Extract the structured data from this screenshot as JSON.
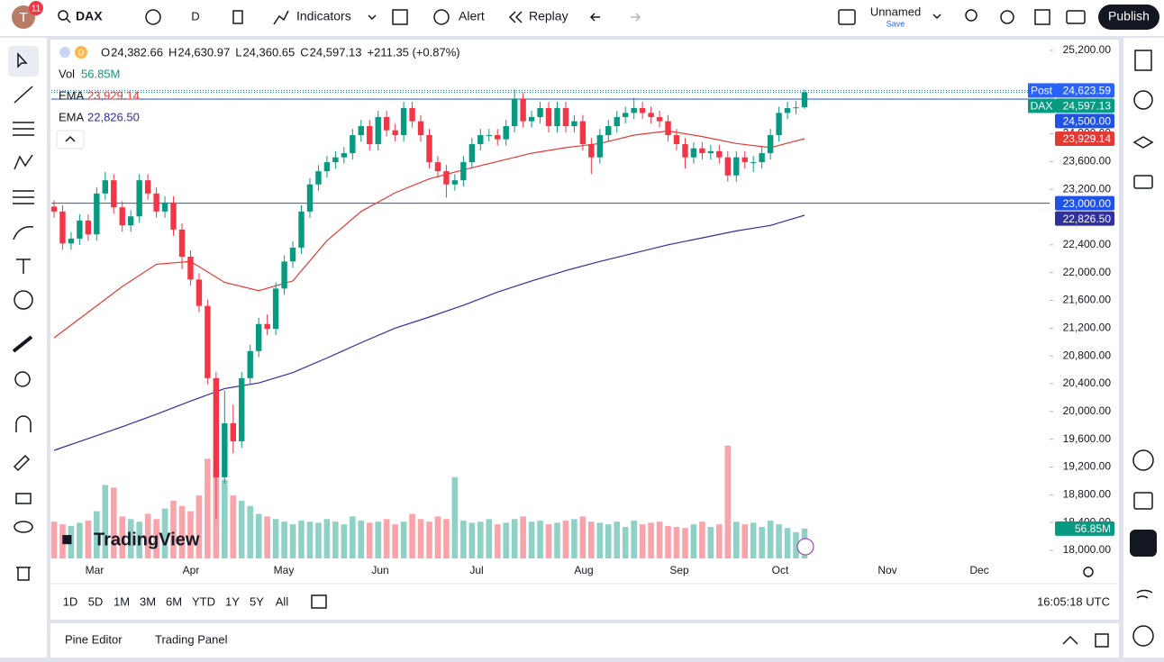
{
  "ui": {
    "avatar": "T",
    "badge": "11",
    "symbol": "DAX",
    "interval": "D",
    "indicators": "Indicators",
    "alert": "Alert",
    "replay": "Replay",
    "layout_name": "Unnamed",
    "save": "Save",
    "publish": "Publish",
    "ranges": [
      "1D",
      "5D",
      "1M",
      "3M",
      "6M",
      "YTD",
      "1Y",
      "5Y",
      "All"
    ],
    "clock": "16:05:18 UTC",
    "bottom_tabs": [
      "Pine Editor",
      "Trading Panel"
    ],
    "logo": "TradingView",
    "d_badge": "D"
  },
  "chart_data": {
    "type": "candlestick",
    "ohlc_legend": [
      {
        "key": "O",
        "label": "24,382.66"
      },
      {
        "key": "H",
        "label": "24,630.97"
      },
      {
        "key": "L",
        "label": "24,360.65"
      },
      {
        "key": "C",
        "label": "24,597.13"
      }
    ],
    "change": "+211.35 (+0.87%)",
    "x_labels": [
      "Mar",
      "Apr",
      "May",
      "Jun",
      "Jul",
      "Aug",
      "Sep",
      "Oct",
      "Nov",
      "Dec"
    ],
    "ylim": [
      18000,
      25200
    ],
    "yticks": [
      {
        "value": 25200,
        "label": "25,200.00"
      },
      {
        "value": 24000,
        "label": "24,000.00"
      },
      {
        "value": 23600,
        "label": "23,600.00"
      },
      {
        "value": 23200,
        "label": "23,200.00"
      },
      {
        "value": 22400,
        "label": "22,400.00"
      },
      {
        "value": 22000,
        "label": "22,000.00"
      },
      {
        "value": 21600,
        "label": "21,600.00"
      },
      {
        "value": 21200,
        "label": "21,200.00"
      },
      {
        "value": 20800,
        "label": "20,800.00"
      },
      {
        "value": 20400,
        "label": "20,400.00"
      },
      {
        "value": 20000,
        "label": "20,000.00"
      },
      {
        "value": 19600,
        "label": "19,600.00"
      },
      {
        "value": 19200,
        "label": "19,200.00"
      },
      {
        "value": 18800,
        "label": "18,800.00"
      },
      {
        "value": 18400,
        "label": "18,400.00"
      },
      {
        "value": 18000,
        "label": "18,000.00"
      }
    ],
    "up_color": "#089981",
    "down_color": "#f23645",
    "candles": {
      "open": [
        22950,
        22880,
        22420,
        22490,
        22750,
        22550,
        23140,
        23330,
        22940,
        22680,
        22810,
        23330,
        23140,
        22880,
        23010,
        22620,
        22230,
        21900,
        21520,
        20480,
        19050,
        19830,
        19570,
        20480,
        20870,
        21260,
        21190,
        21770,
        22160,
        22360,
        22880,
        23270,
        23460,
        23590,
        23660,
        23720,
        23980,
        24110,
        23850,
        24240,
        24050,
        23980,
        24370,
        24180,
        23980,
        23590,
        23460,
        23270,
        23330,
        23590,
        23850,
        23980,
        23980,
        23920,
        24110,
        24500,
        24180,
        24240,
        24370,
        24110,
        24370,
        24110,
        24180,
        23850,
        23660,
        23980,
        24110,
        24240,
        24300,
        24370,
        24300,
        24240,
        24180,
        23980,
        23850,
        23660,
        23790,
        23720,
        23750,
        23660,
        23400,
        23660,
        23590,
        23590,
        23720,
        23980,
        24300,
        24370,
        24382.66
      ],
      "high": [
        23040,
        22970,
        22580,
        22840,
        22840,
        23230,
        23450,
        23420,
        23030,
        22900,
        23420,
        23420,
        23230,
        23100,
        23100,
        22710,
        22320,
        21990,
        21610,
        20570,
        20300,
        20100,
        20570,
        20960,
        21350,
        21400,
        21860,
        22250,
        22450,
        22970,
        23360,
        23550,
        23680,
        23750,
        23810,
        24070,
        24200,
        24200,
        24330,
        24330,
        24140,
        24460,
        24460,
        24270,
        24070,
        23680,
        23550,
        23420,
        23680,
        23940,
        24070,
        24070,
        24070,
        24200,
        24640,
        24590,
        24330,
        24460,
        24460,
        24460,
        24460,
        24270,
        24270,
        23940,
        24070,
        24200,
        24330,
        24390,
        24520,
        24460,
        24390,
        24330,
        24270,
        24070,
        23940,
        23880,
        23880,
        23840,
        23840,
        23750,
        23750,
        23750,
        23680,
        23810,
        24070,
        24390,
        24460,
        24470,
        24630.97
      ],
      "low": [
        22790,
        22330,
        22330,
        22400,
        22460,
        22460,
        23050,
        22850,
        22590,
        22590,
        22720,
        23050,
        22790,
        22790,
        22530,
        22050,
        21810,
        21430,
        20390,
        18450,
        18960,
        19400,
        19480,
        20390,
        20780,
        21100,
        21100,
        21680,
        22070,
        22270,
        22790,
        23180,
        23370,
        23500,
        23570,
        23630,
        23890,
        23760,
        23760,
        23960,
        23890,
        23890,
        24090,
        23890,
        23500,
        23370,
        23080,
        23180,
        23240,
        23500,
        23760,
        23890,
        23830,
        23830,
        24020,
        24090,
        24090,
        24150,
        24020,
        24020,
        24020,
        24020,
        23760,
        23420,
        23570,
        23890,
        24020,
        24150,
        24210,
        24210,
        24150,
        24090,
        23890,
        23760,
        23500,
        23570,
        23630,
        23630,
        23570,
        23310,
        23310,
        23500,
        23450,
        23500,
        23630,
        23890,
        24210,
        24280,
        24360.65
      ],
      "close": [
        22880,
        22420,
        22490,
        22750,
        22550,
        23140,
        23330,
        22940,
        22680,
        22810,
        23330,
        23140,
        22880,
        23010,
        22620,
        22230,
        21900,
        21520,
        20480,
        19050,
        19830,
        19570,
        20480,
        20870,
        21260,
        21190,
        21770,
        22160,
        22360,
        22880,
        23270,
        23460,
        23590,
        23660,
        23720,
        23980,
        24110,
        23850,
        24240,
        24050,
        23980,
        24370,
        24180,
        23980,
        23590,
        23460,
        23270,
        23330,
        23590,
        23850,
        23980,
        23980,
        23920,
        24110,
        24500,
        24180,
        24240,
        24370,
        24110,
        24370,
        24110,
        24180,
        23850,
        23660,
        23980,
        24110,
        24240,
        24300,
        24370,
        24300,
        24240,
        24180,
        23980,
        23850,
        23660,
        23790,
        23720,
        23750,
        23660,
        23400,
        23660,
        23590,
        23590,
        23720,
        23980,
        24300,
        24370,
        24380,
        24597.13
      ]
    },
    "volume": {
      "name": "Vol",
      "last_label": "56.85M",
      "color": "#089981",
      "ylim": [
        0,
        230
      ],
      "values": [
        70,
        65,
        62,
        68,
        72,
        90,
        140,
        135,
        80,
        75,
        70,
        85,
        75,
        95,
        110,
        100,
        90,
        120,
        190,
        170,
        150,
        120,
        110,
        100,
        85,
        80,
        75,
        70,
        65,
        72,
        70,
        68,
        75,
        70,
        65,
        80,
        72,
        68,
        70,
        75,
        65,
        70,
        85,
        75,
        70,
        80,
        75,
        155,
        72,
        68,
        70,
        75,
        65,
        68,
        75,
        80,
        70,
        72,
        65,
        68,
        72,
        75,
        80,
        70,
        68,
        65,
        70,
        60,
        72,
        65,
        68,
        70,
        62,
        60,
        58,
        65,
        70,
        60,
        65,
        215,
        70,
        65,
        68,
        60,
        72,
        65,
        58,
        50,
        56.85
      ]
    },
    "series": [
      {
        "name": "EMA",
        "color": "#e53935",
        "last_label": "23,929.14",
        "values": [
          21060,
          21430,
          21800,
          22120,
          22160,
          21860,
          21740,
          21880,
          22460,
          22880,
          23150,
          23350,
          23480,
          23600,
          23720,
          23800,
          23860,
          23980,
          24040,
          23960,
          23860,
          23800,
          23929.14
        ]
      },
      {
        "name": "EMA",
        "color": "#2f2f9e",
        "last_label": "22,826.50",
        "values": [
          19440,
          19610,
          19780,
          19960,
          20150,
          20330,
          20410,
          20560,
          20770,
          20990,
          21200,
          21360,
          21530,
          21720,
          21880,
          22030,
          22160,
          22280,
          22400,
          22500,
          22600,
          22680,
          22826.5
        ]
      }
    ],
    "price_lines": [
      {
        "name": "Post",
        "value": 24623.59,
        "label": "24,623.59",
        "color": "#2962ff",
        "line": "dotted"
      },
      {
        "value": 24500,
        "label": "24,500.00",
        "color": "#1e53e5",
        "line": "solid"
      },
      {
        "value": 23000,
        "label": "23,000.00",
        "color": "#1e53e5",
        "line": "solid"
      }
    ],
    "last_price_name": "DAX"
  }
}
